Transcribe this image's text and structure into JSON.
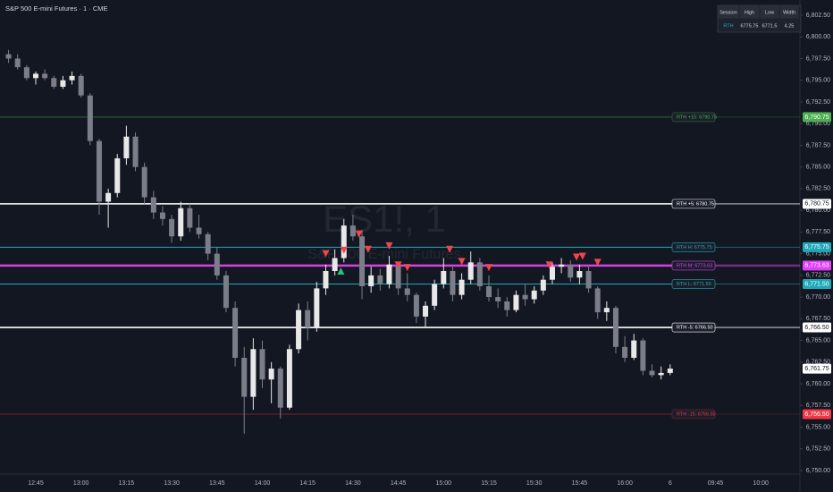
{
  "chart_data": {
    "type": "candlestick",
    "title": "S&P 500 E-mini Futures · 1 · CME",
    "watermark": "ES1!, 1",
    "watermark_subtitle": "S&P 500 E-mini Futures",
    "x": [
      "12:36",
      "12:39",
      "12:42",
      "12:45",
      "12:48",
      "12:51",
      "12:54",
      "12:57",
      "13:00",
      "13:03",
      "13:06",
      "13:09",
      "13:12",
      "13:15",
      "13:18",
      "13:21",
      "13:24",
      "13:27",
      "13:30",
      "13:33",
      "13:36",
      "13:39",
      "13:42",
      "13:45",
      "13:48",
      "13:51",
      "13:54",
      "13:57",
      "14:00",
      "14:03",
      "14:06",
      "14:09",
      "14:12",
      "14:15",
      "14:18",
      "14:21",
      "14:24",
      "14:27",
      "14:30",
      "14:33",
      "14:36",
      "14:39",
      "14:42",
      "14:45",
      "14:48",
      "14:51",
      "14:54",
      "14:57",
      "15:00",
      "15:03",
      "15:06",
      "15:09",
      "15:12",
      "15:15",
      "15:18",
      "15:21",
      "15:24",
      "15:27",
      "15:30",
      "15:33",
      "15:36",
      "15:39",
      "15:42",
      "15:45",
      "15:48",
      "15:51",
      "15:54",
      "15:57",
      "16:00",
      "16:03",
      "16:06",
      "16:09",
      "16:12",
      "16:15"
    ],
    "open": [
      6798.0,
      6797.5,
      6796.5,
      6795.25,
      6795.75,
      6795.25,
      6794.25,
      6795.0,
      6795.5,
      6793.25,
      6788.0,
      6781.0,
      6782.0,
      6786.0,
      6788.5,
      6785.0,
      6781.5,
      6779.75,
      6779.0,
      6777.0,
      6780.25,
      6778.0,
      6777.25,
      6775.0,
      6772.5,
      6768.75,
      6763.0,
      6758.5,
      6764.0,
      6760.5,
      6761.75,
      6757.25,
      6764.0,
      6768.5,
      6766.5,
      6771.0,
      6773.0,
      6774.5,
      6778.25,
      6777.0,
      6771.25,
      6772.5,
      6771.5,
      6773.75,
      6771.0,
      6770.25,
      6767.75,
      6769.0,
      6771.5,
      6773.0,
      6770.25,
      6772.0,
      6774.0,
      6771.25,
      6770.0,
      6769.5,
      6768.5,
      6770.25,
      6769.75,
      6770.75,
      6772.0,
      6773.5,
      6773.75,
      6772.25,
      6773.0,
      6771.0,
      6768.25,
      6768.75,
      6764.25,
      6763.0,
      6765.0,
      6761.5,
      6761.0,
      6761.25
    ],
    "high": [
      6798.5,
      6798.0,
      6796.75,
      6796.0,
      6796.25,
      6795.5,
      6795.5,
      6796.0,
      6795.75,
      6793.5,
      6788.25,
      6782.5,
      6786.5,
      6789.75,
      6789.0,
      6785.5,
      6782.25,
      6780.5,
      6779.5,
      6781.0,
      6780.75,
      6779.5,
      6777.5,
      6775.75,
      6773.0,
      6769.5,
      6764.25,
      6765.25,
      6765.0,
      6762.5,
      6762.0,
      6764.5,
      6769.25,
      6769.5,
      6771.75,
      6773.75,
      6775.5,
      6779.0,
      6779.5,
      6777.75,
      6773.5,
      6773.25,
      6774.75,
      6774.0,
      6772.75,
      6770.5,
      6769.5,
      6772.0,
      6774.5,
      6773.5,
      6772.75,
      6775.25,
      6774.5,
      6772.5,
      6771.0,
      6770.0,
      6770.75,
      6771.5,
      6771.25,
      6772.5,
      6774.0,
      6774.5,
      6774.25,
      6773.75,
      6773.5,
      6771.25,
      6769.5,
      6769.0,
      6765.5,
      6765.75,
      6765.25,
      6762.25,
      6762.0,
      6762.25
    ],
    "low": [
      6797.0,
      6796.25,
      6795.0,
      6794.5,
      6795.0,
      6794.0,
      6794.0,
      6794.5,
      6793.0,
      6787.5,
      6779.5,
      6778.0,
      6781.5,
      6785.25,
      6784.5,
      6780.75,
      6779.0,
      6778.25,
      6776.25,
      6776.5,
      6777.5,
      6776.75,
      6774.25,
      6772.0,
      6768.25,
      6762.0,
      6754.25,
      6757.0,
      6759.5,
      6757.75,
      6756.0,
      6757.0,
      6763.5,
      6765.0,
      6766.0,
      6770.25,
      6772.5,
      6774.0,
      6776.5,
      6769.75,
      6770.5,
      6770.75,
      6771.0,
      6770.25,
      6769.5,
      6767.0,
      6766.5,
      6768.5,
      6771.0,
      6769.5,
      6769.75,
      6771.5,
      6770.75,
      6769.5,
      6768.75,
      6767.75,
      6768.25,
      6769.0,
      6769.25,
      6770.25,
      6771.5,
      6772.75,
      6771.75,
      6771.5,
      6770.5,
      6767.5,
      6767.25,
      6763.5,
      6762.5,
      6762.75,
      6761.0,
      6760.75,
      6760.5,
      6761.0
    ],
    "close": [
      6797.5,
      6796.5,
      6795.25,
      6795.75,
      6795.25,
      6794.25,
      6795.0,
      6795.5,
      6793.25,
      6788.0,
      6781.0,
      6782.0,
      6786.0,
      6788.5,
      6785.0,
      6781.5,
      6779.75,
      6779.0,
      6777.0,
      6780.25,
      6778.0,
      6777.25,
      6775.0,
      6772.5,
      6768.75,
      6763.0,
      6758.5,
      6764.0,
      6760.5,
      6761.75,
      6757.25,
      6764.0,
      6768.5,
      6766.5,
      6771.0,
      6773.0,
      6774.5,
      6778.25,
      6777.0,
      6771.25,
      6772.5,
      6771.5,
      6773.75,
      6771.0,
      6770.25,
      6767.75,
      6769.0,
      6771.5,
      6773.0,
      6770.25,
      6772.0,
      6774.0,
      6771.25,
      6770.0,
      6769.5,
      6768.5,
      6770.25,
      6769.75,
      6770.75,
      6772.0,
      6773.5,
      6773.75,
      6772.25,
      6773.0,
      6771.0,
      6768.25,
      6768.75,
      6764.25,
      6763.0,
      6765.0,
      6761.5,
      6761.0,
      6761.25,
      6761.75
    ],
    "up_color": "#e8e8e8",
    "down_color": "#7b7e88",
    "ylim": [
      6750,
      6802.5
    ],
    "yticks": [
      {
        "value": 6750,
        "label": "6,750.00"
      },
      {
        "value": 6752.5,
        "label": "6,752.50"
      },
      {
        "value": 6755,
        "label": "6,755.00"
      },
      {
        "value": 6757.5,
        "label": "6,757.50"
      },
      {
        "value": 6760,
        "label": "6,760.00"
      },
      {
        "value": 6762.5,
        "label": "6,762.50"
      },
      {
        "value": 6765,
        "label": "6,765.00"
      },
      {
        "value": 6767.5,
        "label": "6,767.50"
      },
      {
        "value": 6770,
        "label": "6,770.00"
      },
      {
        "value": 6772.5,
        "label": "6,772.50"
      },
      {
        "value": 6775,
        "label": "6,775.00"
      },
      {
        "value": 6777.5,
        "label": "6,777.50"
      },
      {
        "value": 6780,
        "label": "6,780.00"
      },
      {
        "value": 6782.5,
        "label": "6,782.50"
      },
      {
        "value": 6785,
        "label": "6,785.00"
      },
      {
        "value": 6787.5,
        "label": "6,787.50"
      },
      {
        "value": 6790,
        "label": "6,790.00"
      },
      {
        "value": 6792.5,
        "label": "6,792.50"
      },
      {
        "value": 6795,
        "label": "6,795.00"
      },
      {
        "value": 6797.5,
        "label": "6,797.50"
      },
      {
        "value": 6800,
        "label": "6,800.00"
      },
      {
        "value": 6802.5,
        "label": "6,802.50"
      }
    ],
    "xticks": [
      "12:45",
      "13:00",
      "13:15",
      "13:30",
      "13:45",
      "14:00",
      "14:15",
      "14:30",
      "14:45",
      "15:00",
      "15:15",
      "15:30",
      "15:45",
      "16:00",
      "6",
      "09:45",
      "10:00"
    ],
    "levels": [
      {
        "name": "RTH +15: 6790.75",
        "value": 6790.75,
        "value_label": "6,790.75",
        "color": "#2f6b34",
        "label_color": "#4caf50"
      },
      {
        "name": "RTH +5: 6780.75",
        "value": 6780.75,
        "value_label": "6,780.75",
        "color": "#ffffff",
        "label_color": "#ffffff"
      },
      {
        "name": "RTH H: 6775.75",
        "value": 6775.75,
        "value_label": "6,775.75",
        "color": "#1fa9b8",
        "label_color": "#1fa9b8"
      },
      {
        "name": "RTH M: 6773.63",
        "value": 6773.63,
        "value_label": "6,773.63",
        "color": "#d63fe0",
        "label_color": "#e040fb"
      },
      {
        "name": "RTH L: 6771.50",
        "value": 6771.5,
        "value_label": "6,771.50",
        "color": "#1fa9b8",
        "label_color": "#1fa9b8"
      },
      {
        "name": "RTH -5: 6766.50",
        "value": 6766.5,
        "value_label": "6,766.50",
        "color": "#ffffff",
        "label_color": "#ffffff"
      },
      {
        "name": "RTH -15: 6756.50",
        "value": 6756.5,
        "value_label": "6,756.50",
        "color": "#7a1f2b",
        "label_color": "#f23645"
      }
    ],
    "sell_signals": {
      "color": "#f0474f",
      "x": [
        "14:21",
        "14:27",
        "14:32",
        "14:35",
        "14:42",
        "14:45",
        "14:48",
        "15:02",
        "15:06",
        "15:15",
        "15:35",
        "15:44",
        "15:46",
        "15:51"
      ],
      "y": [
        6775.0,
        6775.4,
        6777.25,
        6775.5,
        6775.9,
        6773.7,
        6773.4,
        6775.5,
        6774.1,
        6773.4,
        6773.7,
        6774.6,
        6774.7,
        6774.0
      ]
    },
    "buy_signals": {
      "color": "#22c27a",
      "x": [
        "14:26"
      ],
      "y": [
        6773.0
      ]
    },
    "last_price": {
      "value": 6761.75,
      "label": "6,761.75"
    }
  },
  "table": {
    "columns": [
      "Session",
      "High",
      "Low",
      "Width"
    ],
    "rows": [
      [
        "RTH",
        6775.75,
        6771.5,
        4.25
      ]
    ]
  }
}
